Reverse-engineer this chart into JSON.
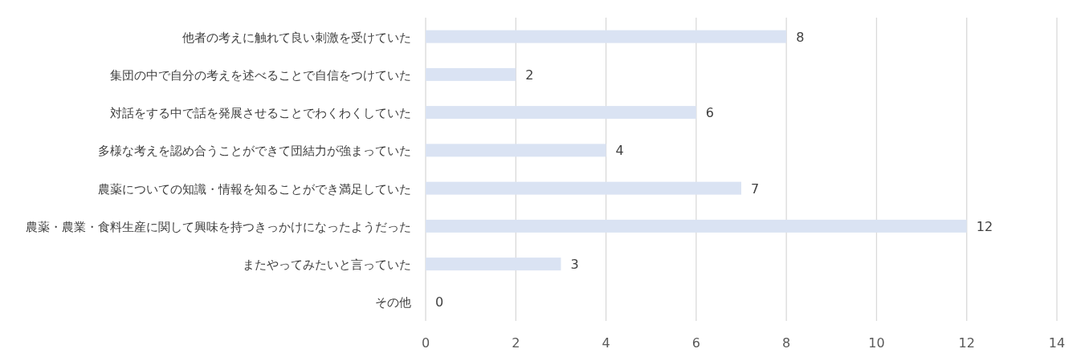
{
  "chart_data": {
    "type": "bar",
    "orientation": "horizontal",
    "categories": [
      "他者の考えに触れて良い刺激を受けていた",
      "集団の中で自分の考えを述べることで自信をつけていた",
      "対話をする中で話を発展させることでわくわくしていた",
      "多様な考えを認め合うことができて団結力が強まっていた",
      "農薬についての知識・情報を知ることができ満足していた",
      "農薬・農業・食料生産に関して興味を持つきっかけになったようだった",
      "またやってみたいと言っていた",
      "その他"
    ],
    "values": [
      8,
      2,
      6,
      4,
      7,
      12,
      3,
      0
    ],
    "color": "#dae3f3",
    "xlim": [
      0,
      14
    ],
    "xticks": [
      0,
      2,
      4,
      6,
      8,
      10,
      12,
      14
    ],
    "grid": "x",
    "data_labels": true
  }
}
